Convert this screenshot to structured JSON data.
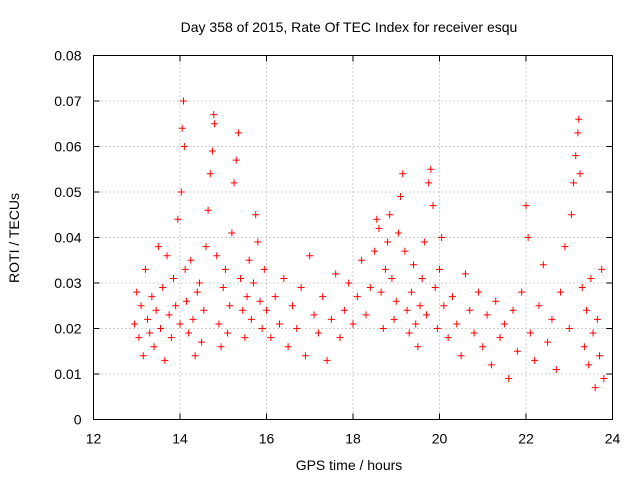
{
  "chart_data": {
    "type": "scatter",
    "title": "Day 358 of 2015, Rate Of TEC Index for receiver esqu",
    "xlabel": "GPS time / hours",
    "ylabel": "ROTI / TECUs",
    "xlim": [
      12,
      24
    ],
    "ylim": [
      0,
      0.08
    ],
    "xticks": [
      12,
      14,
      16,
      18,
      20,
      22,
      24
    ],
    "xtick_labels": [
      "12",
      "14",
      "16",
      "18",
      "20",
      "22",
      "24"
    ],
    "yticks": [
      0,
      0.01,
      0.02,
      0.03,
      0.04,
      0.05,
      0.06,
      0.07,
      0.08
    ],
    "ytick_labels": [
      "0",
      "0.01",
      "0.02",
      "0.03",
      "0.04",
      "0.05",
      "0.06",
      "0.07",
      "0.08"
    ],
    "grid": true,
    "marker": "+",
    "color": "#ff0000",
    "series": [
      {
        "name": "ROTI",
        "points": [
          [
            12.95,
            0.021
          ],
          [
            13.0,
            0.028
          ],
          [
            13.05,
            0.018
          ],
          [
            13.1,
            0.025
          ],
          [
            13.15,
            0.014
          ],
          [
            13.2,
            0.033
          ],
          [
            13.25,
            0.022
          ],
          [
            13.3,
            0.019
          ],
          [
            13.35,
            0.027
          ],
          [
            13.4,
            0.016
          ],
          [
            13.45,
            0.024
          ],
          [
            13.5,
            0.038
          ],
          [
            13.55,
            0.02
          ],
          [
            13.6,
            0.029
          ],
          [
            13.65,
            0.013
          ],
          [
            13.7,
            0.036
          ],
          [
            13.75,
            0.023
          ],
          [
            13.8,
            0.018
          ],
          [
            13.85,
            0.031
          ],
          [
            13.9,
            0.025
          ],
          [
            13.95,
            0.044
          ],
          [
            14.0,
            0.021
          ],
          [
            14.03,
            0.05
          ],
          [
            14.05,
            0.064
          ],
          [
            14.08,
            0.07
          ],
          [
            14.1,
            0.06
          ],
          [
            14.12,
            0.033
          ],
          [
            14.15,
            0.026
          ],
          [
            14.2,
            0.019
          ],
          [
            14.25,
            0.035
          ],
          [
            14.3,
            0.022
          ],
          [
            14.35,
            0.014
          ],
          [
            14.4,
            0.028
          ],
          [
            14.45,
            0.03
          ],
          [
            14.5,
            0.017
          ],
          [
            14.55,
            0.024
          ],
          [
            14.6,
            0.038
          ],
          [
            14.65,
            0.046
          ],
          [
            14.7,
            0.054
          ],
          [
            14.75,
            0.059
          ],
          [
            14.78,
            0.067
          ],
          [
            14.8,
            0.065
          ],
          [
            14.85,
            0.036
          ],
          [
            14.9,
            0.021
          ],
          [
            14.95,
            0.016
          ],
          [
            15.0,
            0.029
          ],
          [
            15.05,
            0.033
          ],
          [
            15.1,
            0.019
          ],
          [
            15.15,
            0.025
          ],
          [
            15.2,
            0.041
          ],
          [
            15.25,
            0.052
          ],
          [
            15.3,
            0.057
          ],
          [
            15.35,
            0.063
          ],
          [
            15.4,
            0.031
          ],
          [
            15.45,
            0.024
          ],
          [
            15.5,
            0.018
          ],
          [
            15.55,
            0.027
          ],
          [
            15.6,
            0.035
          ],
          [
            15.65,
            0.022
          ],
          [
            15.7,
            0.03
          ],
          [
            15.75,
            0.045
          ],
          [
            15.8,
            0.039
          ],
          [
            15.85,
            0.026
          ],
          [
            15.9,
            0.02
          ],
          [
            15.95,
            0.033
          ],
          [
            16.0,
            0.024
          ],
          [
            16.1,
            0.018
          ],
          [
            16.2,
            0.027
          ],
          [
            16.3,
            0.021
          ],
          [
            16.4,
            0.031
          ],
          [
            16.5,
            0.016
          ],
          [
            16.6,
            0.025
          ],
          [
            16.7,
            0.02
          ],
          [
            16.8,
            0.029
          ],
          [
            16.9,
            0.014
          ],
          [
            17.0,
            0.036
          ],
          [
            17.1,
            0.023
          ],
          [
            17.2,
            0.019
          ],
          [
            17.3,
            0.027
          ],
          [
            17.4,
            0.013
          ],
          [
            17.5,
            0.022
          ],
          [
            17.6,
            0.032
          ],
          [
            17.7,
            0.018
          ],
          [
            17.8,
            0.024
          ],
          [
            17.9,
            0.03
          ],
          [
            18.0,
            0.021
          ],
          [
            18.1,
            0.027
          ],
          [
            18.2,
            0.035
          ],
          [
            18.3,
            0.023
          ],
          [
            18.4,
            0.029
          ],
          [
            18.5,
            0.037
          ],
          [
            18.55,
            0.044
          ],
          [
            18.6,
            0.042
          ],
          [
            18.65,
            0.028
          ],
          [
            18.7,
            0.02
          ],
          [
            18.75,
            0.033
          ],
          [
            18.8,
            0.039
          ],
          [
            18.85,
            0.045
          ],
          [
            18.9,
            0.031
          ],
          [
            18.95,
            0.022
          ],
          [
            19.0,
            0.026
          ],
          [
            19.05,
            0.041
          ],
          [
            19.1,
            0.049
          ],
          [
            19.15,
            0.054
          ],
          [
            19.2,
            0.037
          ],
          [
            19.25,
            0.024
          ],
          [
            19.3,
            0.019
          ],
          [
            19.35,
            0.028
          ],
          [
            19.4,
            0.034
          ],
          [
            19.45,
            0.021
          ],
          [
            19.5,
            0.016
          ],
          [
            19.55,
            0.025
          ],
          [
            19.6,
            0.031
          ],
          [
            19.65,
            0.039
          ],
          [
            19.7,
            0.023
          ],
          [
            19.75,
            0.052
          ],
          [
            19.8,
            0.055
          ],
          [
            19.85,
            0.047
          ],
          [
            19.9,
            0.029
          ],
          [
            19.95,
            0.02
          ],
          [
            20.0,
            0.033
          ],
          [
            20.05,
            0.04
          ],
          [
            20.1,
            0.025
          ],
          [
            20.2,
            0.018
          ],
          [
            20.3,
            0.027
          ],
          [
            20.4,
            0.021
          ],
          [
            20.5,
            0.014
          ],
          [
            20.6,
            0.032
          ],
          [
            20.7,
            0.024
          ],
          [
            20.8,
            0.019
          ],
          [
            20.9,
            0.028
          ],
          [
            21.0,
            0.016
          ],
          [
            21.1,
            0.023
          ],
          [
            21.2,
            0.012
          ],
          [
            21.3,
            0.026
          ],
          [
            21.4,
            0.018
          ],
          [
            21.5,
            0.021
          ],
          [
            21.6,
            0.009
          ],
          [
            21.7,
            0.024
          ],
          [
            21.8,
            0.015
          ],
          [
            21.9,
            0.028
          ],
          [
            22.0,
            0.047
          ],
          [
            22.05,
            0.04
          ],
          [
            22.1,
            0.019
          ],
          [
            22.2,
            0.013
          ],
          [
            22.3,
            0.025
          ],
          [
            22.4,
            0.034
          ],
          [
            22.5,
            0.017
          ],
          [
            22.6,
            0.022
          ],
          [
            22.7,
            0.011
          ],
          [
            22.8,
            0.028
          ],
          [
            22.9,
            0.038
          ],
          [
            23.0,
            0.02
          ],
          [
            23.05,
            0.045
          ],
          [
            23.1,
            0.052
          ],
          [
            23.15,
            0.058
          ],
          [
            23.2,
            0.063
          ],
          [
            23.22,
            0.066
          ],
          [
            23.25,
            0.054
          ],
          [
            23.3,
            0.029
          ],
          [
            23.35,
            0.016
          ],
          [
            23.4,
            0.024
          ],
          [
            23.45,
            0.012
          ],
          [
            23.5,
            0.031
          ],
          [
            23.55,
            0.019
          ],
          [
            23.6,
            0.007
          ],
          [
            23.65,
            0.022
          ],
          [
            23.7,
            0.014
          ],
          [
            23.75,
            0.033
          ],
          [
            23.8,
            0.009
          ]
        ]
      }
    ]
  }
}
